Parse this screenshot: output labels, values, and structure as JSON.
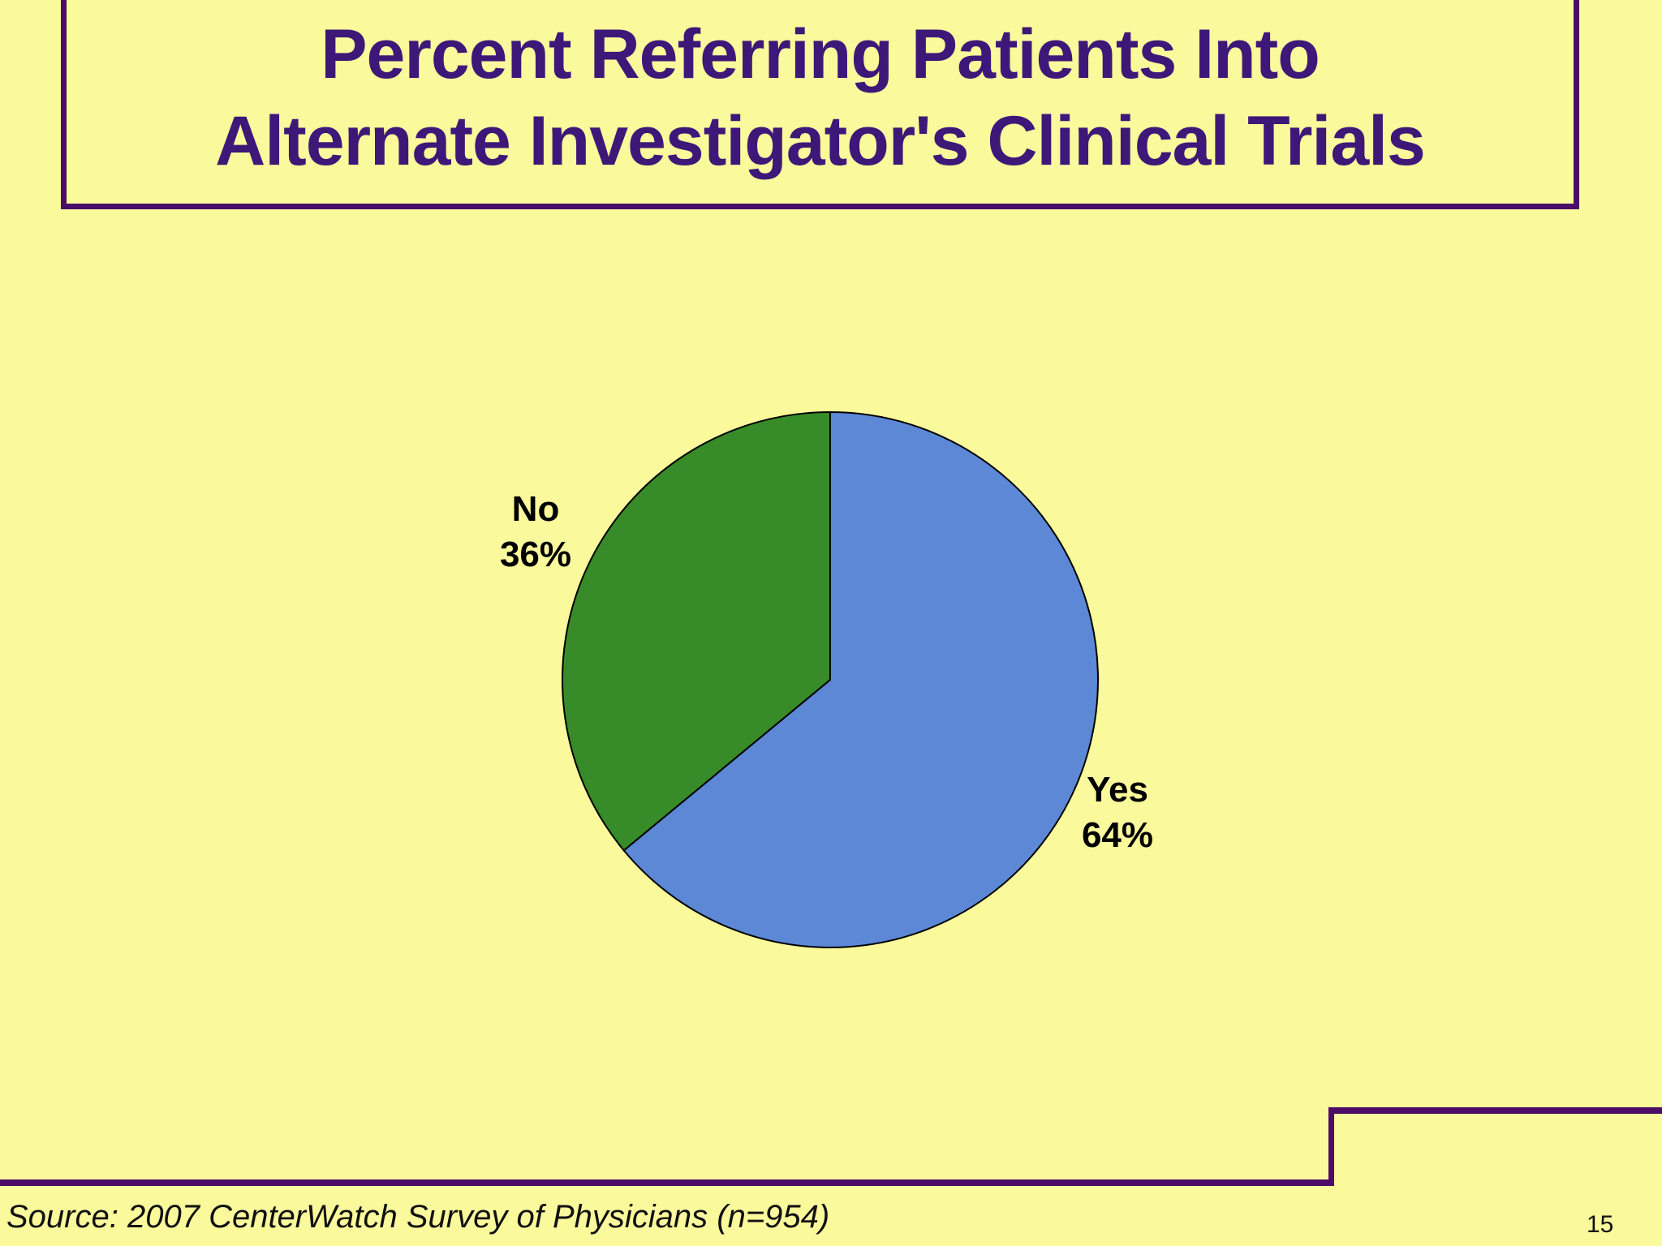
{
  "slide": {
    "background_color": "#FAF99C",
    "accent_color": "#4B0D67",
    "page_number": "15"
  },
  "title": {
    "color": "#3E1878",
    "lines": [
      "Percent Referring Patients Into",
      "Alternate Investigator's Clinical Trials"
    ]
  },
  "footer": {
    "source_note": "Source: 2007 CenterWatch Survey of Physicians (n=954)"
  },
  "chart_data": {
    "type": "pie",
    "title": "Percent Referring Patients Into Alternate Investigator's Clinical Trials",
    "start_angle_deg": -90,
    "direction": "clockwise",
    "legend": "none",
    "outline_color": "#000000",
    "slices": [
      {
        "label": "Yes",
        "value": 64,
        "value_label": "64%",
        "color": "#5C88D6"
      },
      {
        "label": "No",
        "value": 36,
        "value_label": "36%",
        "color": "#378B28"
      }
    ]
  }
}
